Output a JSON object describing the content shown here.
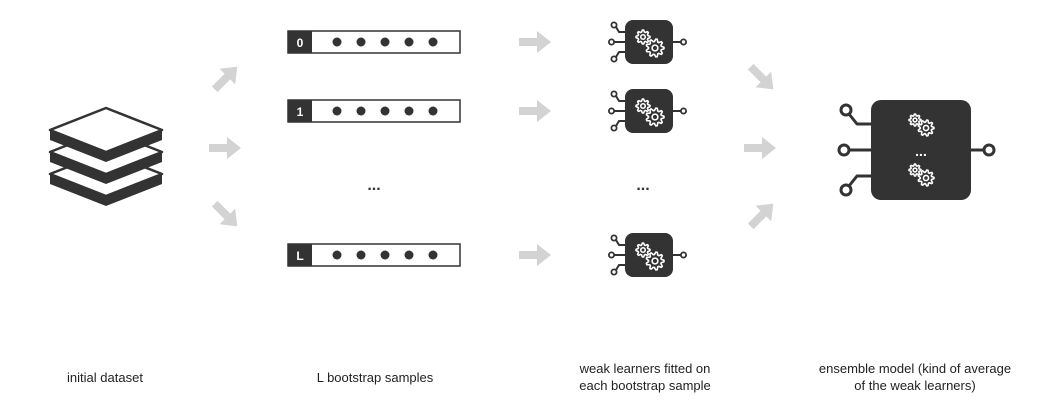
{
  "diagram": {
    "title": "",
    "colors": {
      "dark": "#333333",
      "arrow": "#d3d3d3",
      "gear": "#ffffff",
      "text": "#222222"
    },
    "bootstrap_samples": [
      {
        "label": "0",
        "dots": 5
      },
      {
        "label": "1",
        "dots": 5
      },
      {
        "label": "L",
        "dots": 5
      }
    ],
    "ellipsis": "...",
    "ensemble_ellipsis": "...",
    "icons": {
      "dataset": "stacked-layers-icon",
      "learner": "gear-chip-icon",
      "ensemble": "gear-chip-icon"
    }
  },
  "captions": {
    "initial_dataset": "initial dataset",
    "bootstrap": "L bootstrap samples",
    "weak_learners": [
      "weak learners fitted on",
      "each bootstrap sample"
    ],
    "ensemble": [
      "ensemble model (kind of average",
      "of the weak learners)"
    ]
  }
}
